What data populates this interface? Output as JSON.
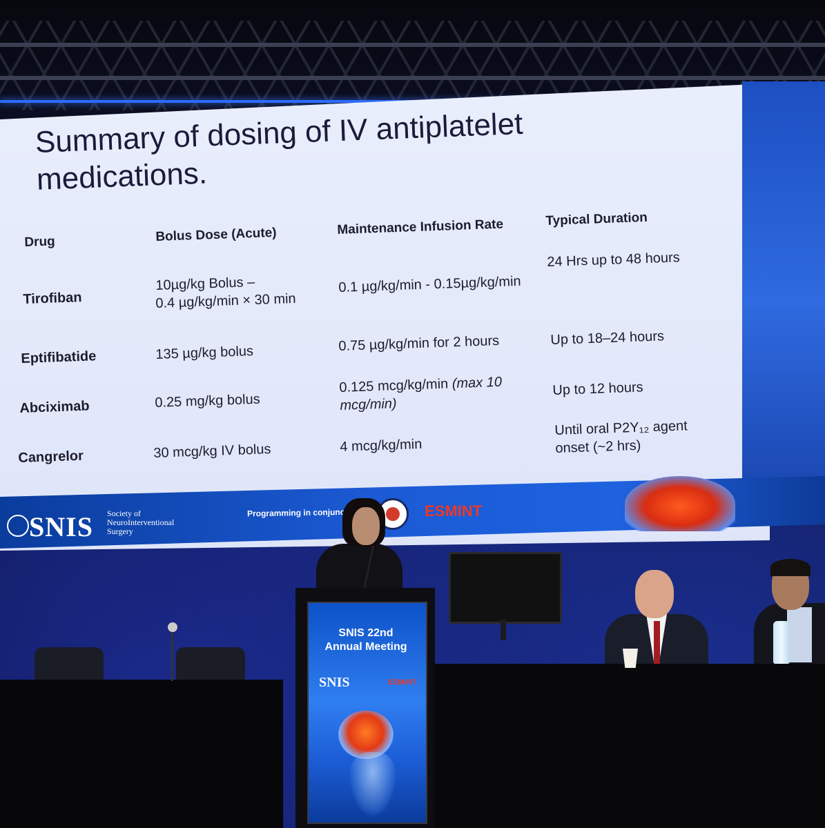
{
  "slide": {
    "title_line1": "Summary of dosing of IV antiplatelet",
    "title_line2": "medications.",
    "headers": {
      "drug": "Drug",
      "bolus": "Bolus Dose (Acute)",
      "maintenance": "Maintenance Infusion Rate",
      "duration": "Typical Duration"
    },
    "rows": [
      {
        "drug": "Tirofiban",
        "bolus_line1": "10µg/kg Bolus –",
        "bolus_line2": "0.4 µg/kg/min × 30 min",
        "maintenance": "0.1 µg/kg/min - 0.15µg/kg/min",
        "duration": "24 Hrs up to 48 hours"
      },
      {
        "drug": "Eptifibatide",
        "bolus": "135 µg/kg bolus",
        "maintenance": "0.75 µg/kg/min for 2 hours",
        "duration": "Up to 18–24 hours"
      },
      {
        "drug": "Abciximab",
        "bolus": "0.25 mg/kg bolus",
        "maintenance_line1": "0.125 mcg/kg/min ",
        "maintenance_italic1": "(max 10",
        "maintenance_italic2": "mcg/min)",
        "duration": "Up to 12 hours"
      },
      {
        "drug": "Cangrelor",
        "bolus": "30 mcg/kg IV bolus",
        "maintenance": "4 mcg/kg/min",
        "duration_line1": "Until oral P2Y₁₂ agent",
        "duration_line2": "onset (~2 hrs)"
      }
    ]
  },
  "footer": {
    "snis_logo": "SNIS",
    "snis_sub1": "Society of",
    "snis_sub2": "NeuroInterventional",
    "snis_sub3": "Surgery",
    "programming": "Programming in conjunction",
    "esmint": "ESMINT"
  },
  "podium": {
    "title_line1": "SNIS 22nd",
    "title_line2": "Annual Meeting",
    "snis": "SNIS",
    "esmint": "ESMINT"
  },
  "colors": {
    "slide_bg": "#e9eefc",
    "accent_blue": "#1e62df",
    "esmint_red": "#e83a2a"
  }
}
